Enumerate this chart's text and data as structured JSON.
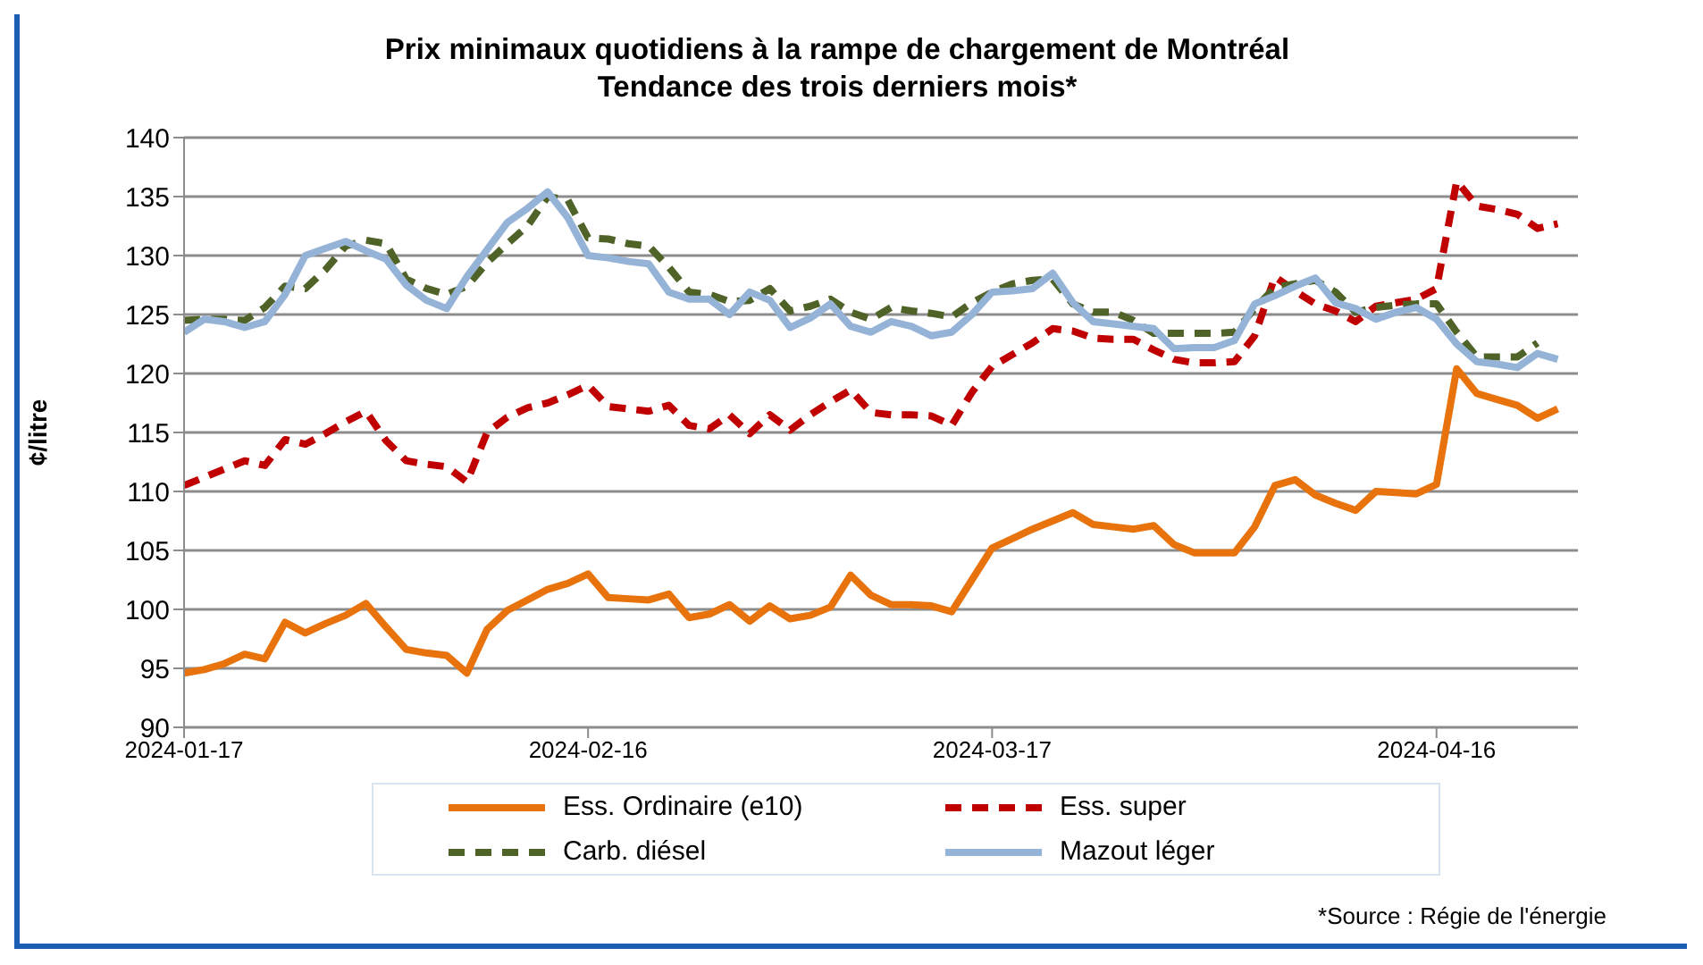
{
  "chart_data": {
    "type": "line",
    "title": "Prix minimaux quotidiens à la rampe de chargement de Montréal",
    "subtitle": "Tendance des trois derniers mois*",
    "ylabel": "¢/litre",
    "annotations": [
      "*Source : Régie de l'énergie"
    ],
    "categories": [
      "2024-01-17",
      null,
      null,
      null,
      null,
      null,
      null,
      null,
      null,
      null,
      null,
      null,
      null,
      null,
      null,
      null,
      null,
      null,
      null,
      null,
      "2024-02-16",
      null,
      null,
      null,
      null,
      null,
      null,
      null,
      null,
      null,
      null,
      null,
      null,
      null,
      null,
      null,
      null,
      null,
      null,
      null,
      "2024-03-17",
      null,
      null,
      null,
      null,
      null,
      null,
      null,
      null,
      null,
      null,
      null,
      null,
      null,
      null,
      null,
      null,
      null,
      null,
      null,
      null,
      null,
      "2024-04-16",
      null,
      null,
      null,
      null,
      null,
      null
    ],
    "ylim": [
      90,
      140
    ],
    "yticks": [
      90,
      95,
      100,
      105,
      110,
      115,
      120,
      125,
      130,
      135,
      140
    ],
    "grid": "y",
    "legend": "bottom",
    "series": [
      {
        "name": "Ess. Ordinaire (e10)",
        "color": "#e8720c",
        "line_style": "solid",
        "values": [
          94.6,
          94.9,
          95.4,
          96.2,
          95.8,
          98.9,
          98.0,
          98.8,
          99.5,
          100.5,
          98.5,
          96.6,
          96.3,
          96.1,
          94.6,
          98.3,
          99.9,
          100.8,
          101.7,
          102.2,
          103.0,
          101.0,
          100.9,
          100.8,
          101.3,
          99.3,
          99.6,
          100.4,
          99.0,
          100.3,
          99.2,
          99.5,
          100.2,
          102.9,
          101.2,
          100.4,
          100.4,
          100.3,
          99.8,
          102.5,
          105.2,
          106.0,
          106.8,
          107.5,
          108.2,
          107.2,
          107.0,
          106.8,
          107.1,
          105.5,
          104.8,
          104.8,
          104.8,
          107.0,
          110.5,
          111.0,
          109.7,
          109.0,
          108.4,
          110.0,
          109.9,
          109.8,
          110.6,
          120.4,
          118.3,
          117.8,
          117.3,
          116.2,
          117.0
        ]
      },
      {
        "name": "Ess. super",
        "color": "#c00000",
        "line_style": "dashed",
        "values": [
          110.5,
          111.2,
          111.9,
          112.6,
          112.2,
          114.4,
          114.0,
          114.9,
          115.9,
          116.8,
          114.3,
          112.6,
          112.3,
          112.1,
          110.8,
          115.0,
          116.3,
          117.1,
          117.5,
          118.2,
          119.0,
          117.2,
          117.0,
          116.8,
          117.3,
          115.6,
          115.3,
          116.5,
          114.9,
          116.5,
          115.2,
          116.5,
          117.6,
          118.6,
          116.7,
          116.5,
          116.5,
          116.4,
          115.6,
          118.4,
          120.6,
          121.6,
          122.6,
          123.8,
          123.6,
          123.0,
          122.9,
          122.9,
          122.0,
          121.2,
          120.9,
          120.9,
          121.0,
          123.2,
          128.2,
          127.0,
          125.9,
          125.3,
          124.4,
          125.7,
          126.0,
          126.3,
          127.2,
          136.3,
          134.2,
          133.9,
          133.5,
          132.3,
          132.7
        ]
      },
      {
        "name": "Carb. diésel",
        "color": "#4f6228",
        "line_style": "dashed",
        "values": [
          124.5,
          124.6,
          124.6,
          124.5,
          125.6,
          127.4,
          127.2,
          128.8,
          130.8,
          131.3,
          131.0,
          128.0,
          127.2,
          126.7,
          127.4,
          129.4,
          131.0,
          132.5,
          135.0,
          134.7,
          131.5,
          131.4,
          131.0,
          130.8,
          129.0,
          126.9,
          126.7,
          126.1,
          126.2,
          127.2,
          125.3,
          125.7,
          126.3,
          125.2,
          124.6,
          125.6,
          125.3,
          125.1,
          124.8,
          126.0,
          126.9,
          127.6,
          127.9,
          128.0,
          125.9,
          125.2,
          125.2,
          124.5,
          123.4,
          123.4,
          123.4,
          123.4,
          123.5,
          125.5,
          127.3,
          127.6,
          127.9,
          126.9,
          125.2,
          125.6,
          125.8,
          125.9,
          125.9,
          123.5,
          121.4,
          121.4,
          121.4,
          122.6,
          null
        ]
      },
      {
        "name": "Mazout léger",
        "color": "#95b3d7",
        "line_style": "solid",
        "values": [
          123.5,
          124.6,
          124.4,
          123.9,
          124.4,
          126.7,
          130.0,
          130.6,
          131.2,
          130.4,
          129.7,
          127.5,
          126.2,
          125.5,
          128.2,
          130.5,
          132.8,
          134.0,
          135.4,
          133.2,
          130.0,
          129.8,
          129.5,
          129.3,
          126.9,
          126.3,
          126.3,
          125.0,
          126.9,
          126.2,
          123.9,
          124.7,
          125.9,
          124.0,
          123.5,
          124.4,
          124.0,
          123.2,
          123.5,
          125.0,
          126.9,
          127.0,
          127.2,
          128.5,
          126.0,
          124.4,
          124.2,
          124.0,
          123.8,
          122.1,
          122.2,
          122.2,
          122.8,
          125.9,
          126.6,
          127.4,
          128.1,
          126.0,
          125.5,
          124.6,
          125.2,
          125.6,
          124.6,
          122.5,
          121.0,
          120.8,
          120.5,
          121.7,
          121.2
        ]
      }
    ]
  }
}
